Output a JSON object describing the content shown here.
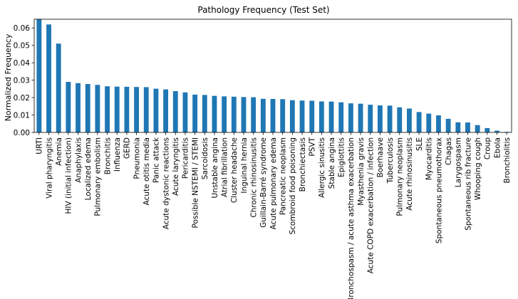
{
  "chart_data": {
    "type": "bar",
    "title": "Pathology Frequency (Test Set)",
    "xlabel": "",
    "ylabel": "Normalized Frequency",
    "ylim": [
      0,
      0.065
    ],
    "yticks": [
      "0.00",
      "0.01",
      "0.02",
      "0.03",
      "0.04",
      "0.05",
      "0.06"
    ],
    "grid": false,
    "bar_color": "#1f77b4",
    "categories": [
      "URTI",
      "Viral pharyngitis",
      "Anemia",
      "HIV (initial infection)",
      "Anaphylaxis",
      "Localized edema",
      "Pulmonary embolism",
      "Bronchitis",
      "Influenza",
      "GERD",
      "Pneumonia",
      "Acute otitis media",
      "Panic attack",
      "Acute dystonic reactions",
      "Acute laryngitis",
      "Pericarditis",
      "Possible NSTEMI / STEMI",
      "Sarcoidosis",
      "Unstable angina",
      "Atrial fibrillation",
      "Cluster headache",
      "Inguinal hernia",
      "Chronic rhinosinusitis",
      "Guillain-Barré syndrome",
      "Acute pulmonary edema",
      "Pancreatic neoplasm",
      "Scombroid food poisoning",
      "Bronchiectasis",
      "PSVT",
      "Allergic sinusitis",
      "Stable angina",
      "Epiglottitis",
      "Bronchospasm / acute asthma exacerbation",
      "Myasthenia gravis",
      "Acute COPD exacerbation / infection",
      "Boerhaave",
      "Tuberculosis",
      "Pulmonary neoplasm",
      "Acute rhinosinusitis",
      "SLE",
      "Myocarditis",
      "Spontaneous pneumothorax",
      "Chagas",
      "Larygospasm",
      "Spontaneous rib fracture",
      "Whooping cough",
      "Croup",
      "Ebola",
      "Bronchiolitis"
    ],
    "values": [
      0.065,
      0.062,
      0.051,
      0.029,
      0.0283,
      0.0278,
      0.0273,
      0.0265,
      0.0263,
      0.0262,
      0.0261,
      0.026,
      0.0251,
      0.0247,
      0.0237,
      0.023,
      0.0217,
      0.0215,
      0.021,
      0.0207,
      0.0205,
      0.0203,
      0.0202,
      0.0193,
      0.0192,
      0.0191,
      0.0185,
      0.0183,
      0.0182,
      0.0178,
      0.0177,
      0.0173,
      0.0167,
      0.0165,
      0.0159,
      0.0155,
      0.0154,
      0.0144,
      0.0137,
      0.0117,
      0.0108,
      0.0098,
      0.0078,
      0.0058,
      0.0057,
      0.0042,
      0.0025,
      0.001,
      0.0003
    ]
  }
}
